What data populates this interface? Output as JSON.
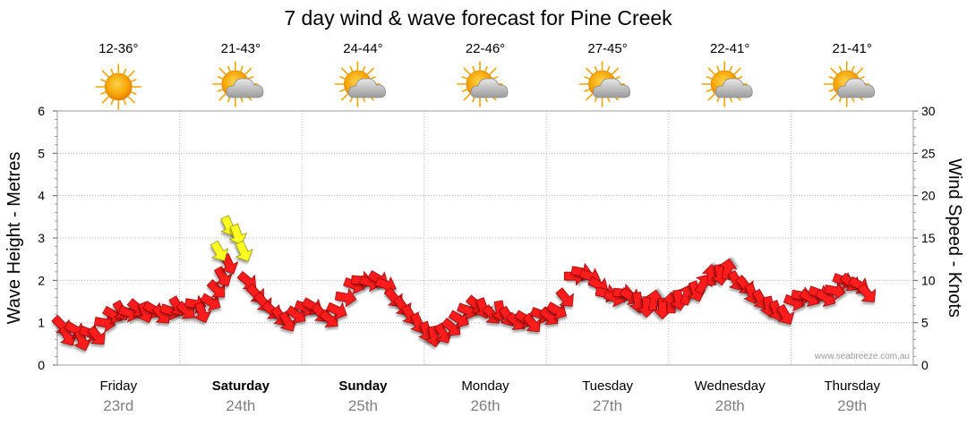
{
  "chart_data": {
    "type": "line",
    "title": "7 day wind & wave forecast for Pine Creek",
    "ylabel_left": "Wave Height - Metres",
    "ylabel_right": "Wind Speed - Knots",
    "ylim_left": [
      0,
      6
    ],
    "ylim_right": [
      0,
      30
    ],
    "yticks_left": [
      "0",
      "1",
      "2",
      "3",
      "4",
      "5",
      "6"
    ],
    "yticks_right": [
      "0",
      "5",
      "10",
      "15",
      "20",
      "25",
      "30"
    ],
    "grid": true,
    "credit": "www.seabreeze.com.au",
    "days": [
      {
        "name": "Friday",
        "date": "23rd",
        "bold": false,
        "temp": "12-36°",
        "weather": "sunny"
      },
      {
        "name": "Saturday",
        "date": "24th",
        "bold": true,
        "temp": "21-43°",
        "weather": "partly-cloudy"
      },
      {
        "name": "Sunday",
        "date": "25th",
        "bold": true,
        "temp": "24-44°",
        "weather": "partly-cloudy"
      },
      {
        "name": "Monday",
        "date": "26th",
        "bold": false,
        "temp": "22-46°",
        "weather": "partly-cloudy"
      },
      {
        "name": "Tuesday",
        "date": "27th",
        "bold": false,
        "temp": "27-45°",
        "weather": "partly-cloudy"
      },
      {
        "name": "Wednesday",
        "date": "28th",
        "bold": false,
        "temp": "22-41°",
        "weather": "partly-cloudy"
      },
      {
        "name": "Thursday",
        "date": "29th",
        "bold": false,
        "temp": "21-41°",
        "weather": "partly-cloudy"
      }
    ],
    "series": [
      {
        "name": "Wind Speed",
        "unit": "knots",
        "x_unit": "days from start",
        "points": [
          {
            "t": 0.03,
            "v": 4.8,
            "dir": 135
          },
          {
            "t": 0.08,
            "v": 3.5,
            "dir": 150
          },
          {
            "t": 0.14,
            "v": 4.2,
            "dir": 120
          },
          {
            "t": 0.2,
            "v": 3.0,
            "dir": 160
          },
          {
            "t": 0.26,
            "v": 3.8,
            "dir": 110
          },
          {
            "t": 0.32,
            "v": 3.5,
            "dir": 140
          },
          {
            "t": 0.38,
            "v": 5.0,
            "dir": 100
          },
          {
            "t": 0.45,
            "v": 6.0,
            "dir": 120
          },
          {
            "t": 0.52,
            "v": 6.5,
            "dir": 150
          },
          {
            "t": 0.58,
            "v": 6.2,
            "dir": 110
          },
          {
            "t": 0.65,
            "v": 6.8,
            "dir": 130
          },
          {
            "t": 0.72,
            "v": 6.3,
            "dir": 160
          },
          {
            "t": 0.78,
            "v": 6.6,
            "dir": 120
          },
          {
            "t": 0.85,
            "v": 6.0,
            "dir": 140
          },
          {
            "t": 0.92,
            "v": 6.4,
            "dir": 110
          },
          {
            "t": 0.98,
            "v": 7.0,
            "dir": 150
          },
          {
            "t": 1.05,
            "v": 6.5,
            "dir": 130
          },
          {
            "t": 1.12,
            "v": 7.2,
            "dir": 100
          },
          {
            "t": 1.18,
            "v": 6.3,
            "dir": 160
          },
          {
            "t": 1.25,
            "v": 7.5,
            "dir": 120
          },
          {
            "t": 1.3,
            "v": 9.0,
            "dir": 135
          },
          {
            "t": 1.35,
            "v": 10.5,
            "dir": 150
          },
          {
            "t": 1.4,
            "v": 12.0,
            "dir": 155
          },
          {
            "t": 1.55,
            "v": 10.0,
            "dir": 130
          },
          {
            "t": 1.62,
            "v": 8.5,
            "dir": 135
          },
          {
            "t": 1.68,
            "v": 7.5,
            "dir": 140
          },
          {
            "t": 1.75,
            "v": 6.5,
            "dir": 130
          },
          {
            "t": 1.82,
            "v": 5.8,
            "dir": 145
          },
          {
            "t": 1.88,
            "v": 5.2,
            "dir": 150
          },
          {
            "t": 1.95,
            "v": 6.0,
            "dir": 125
          },
          {
            "t": 2.02,
            "v": 6.8,
            "dir": 110
          },
          {
            "t": 2.08,
            "v": 7.0,
            "dir": 120
          },
          {
            "t": 2.15,
            "v": 6.2,
            "dir": 140
          },
          {
            "t": 2.22,
            "v": 5.5,
            "dir": 130
          },
          {
            "t": 2.28,
            "v": 6.5,
            "dir": 115
          },
          {
            "t": 2.35,
            "v": 8.0,
            "dir": 100
          },
          {
            "t": 2.42,
            "v": 9.5,
            "dir": 110
          },
          {
            "t": 2.48,
            "v": 10.0,
            "dir": 95
          },
          {
            "t": 2.55,
            "v": 9.8,
            "dir": 105
          },
          {
            "t": 2.62,
            "v": 10.2,
            "dir": 120
          },
          {
            "t": 2.68,
            "v": 9.5,
            "dir": 110
          },
          {
            "t": 2.75,
            "v": 8.0,
            "dir": 140
          },
          {
            "t": 2.82,
            "v": 7.0,
            "dir": 145
          },
          {
            "t": 2.88,
            "v": 6.0,
            "dir": 150
          },
          {
            "t": 2.95,
            "v": 5.0,
            "dir": 155
          },
          {
            "t": 3.02,
            "v": 4.0,
            "dir": 160
          },
          {
            "t": 3.08,
            "v": 3.5,
            "dir": 170
          },
          {
            "t": 3.15,
            "v": 3.8,
            "dir": 150
          },
          {
            "t": 3.22,
            "v": 4.5,
            "dir": 130
          },
          {
            "t": 3.28,
            "v": 5.5,
            "dir": 120
          },
          {
            "t": 3.35,
            "v": 6.5,
            "dir": 110
          },
          {
            "t": 3.42,
            "v": 7.2,
            "dir": 130
          },
          {
            "t": 3.48,
            "v": 6.8,
            "dir": 160
          },
          {
            "t": 3.55,
            "v": 6.0,
            "dir": 140
          },
          {
            "t": 3.62,
            "v": 6.5,
            "dir": 170
          },
          {
            "t": 3.68,
            "v": 5.8,
            "dir": 150
          },
          {
            "t": 3.75,
            "v": 5.2,
            "dir": 130
          },
          {
            "t": 3.82,
            "v": 5.5,
            "dir": 120
          },
          {
            "t": 3.88,
            "v": 5.0,
            "dir": 140
          },
          {
            "t": 3.95,
            "v": 6.0,
            "dir": 110
          },
          {
            "t": 4.02,
            "v": 5.8,
            "dir": 130
          },
          {
            "t": 4.08,
            "v": 6.5,
            "dir": 120
          },
          {
            "t": 4.15,
            "v": 8.0,
            "dir": 140
          },
          {
            "t": 4.22,
            "v": 10.5,
            "dir": 90
          },
          {
            "t": 4.28,
            "v": 11.0,
            "dir": 100
          },
          {
            "t": 4.35,
            "v": 10.5,
            "dir": 110
          },
          {
            "t": 4.42,
            "v": 9.5,
            "dir": 120
          },
          {
            "t": 4.48,
            "v": 8.5,
            "dir": 100
          },
          {
            "t": 4.55,
            "v": 8.0,
            "dir": 110
          },
          {
            "t": 4.62,
            "v": 8.5,
            "dir": 95
          },
          {
            "t": 4.68,
            "v": 8.2,
            "dir": 120
          },
          {
            "t": 4.75,
            "v": 7.5,
            "dir": 170
          },
          {
            "t": 4.82,
            "v": 7.0,
            "dir": 180
          },
          {
            "t": 4.88,
            "v": 7.5,
            "dir": 10
          },
          {
            "t": 4.95,
            "v": 6.8,
            "dir": 180
          },
          {
            "t": 5.02,
            "v": 7.2,
            "dir": 0
          },
          {
            "t": 5.08,
            "v": 7.8,
            "dir": 170
          },
          {
            "t": 5.15,
            "v": 8.2,
            "dir": 20
          },
          {
            "t": 5.22,
            "v": 8.8,
            "dir": 160
          },
          {
            "t": 5.28,
            "v": 9.5,
            "dir": 30
          },
          {
            "t": 5.35,
            "v": 10.5,
            "dir": 0
          },
          {
            "t": 5.42,
            "v": 10.8,
            "dir": 170
          },
          {
            "t": 5.48,
            "v": 11.2,
            "dir": 10
          },
          {
            "t": 5.55,
            "v": 10.0,
            "dir": 150
          },
          {
            "t": 5.62,
            "v": 9.5,
            "dir": 140
          },
          {
            "t": 5.68,
            "v": 8.5,
            "dir": 160
          },
          {
            "t": 5.75,
            "v": 7.8,
            "dir": 150
          },
          {
            "t": 5.82,
            "v": 7.0,
            "dir": 170
          },
          {
            "t": 5.88,
            "v": 6.5,
            "dir": 160
          },
          {
            "t": 5.95,
            "v": 6.0,
            "dir": 150
          },
          {
            "t": 6.02,
            "v": 7.5,
            "dir": 110
          },
          {
            "t": 6.08,
            "v": 8.2,
            "dir": 100
          },
          {
            "t": 6.15,
            "v": 8.0,
            "dir": 120
          },
          {
            "t": 6.22,
            "v": 8.5,
            "dir": 110
          },
          {
            "t": 6.28,
            "v": 8.0,
            "dir": 120
          },
          {
            "t": 6.35,
            "v": 8.8,
            "dir": 100
          },
          {
            "t": 6.42,
            "v": 10.0,
            "dir": 110
          },
          {
            "t": 6.48,
            "v": 9.8,
            "dir": 130
          },
          {
            "t": 6.55,
            "v": 9.5,
            "dir": 120
          },
          {
            "t": 6.62,
            "v": 8.5,
            "dir": 140
          }
        ]
      },
      {
        "name": "Wind Gusts",
        "unit": "knots",
        "x_unit": "days from start",
        "points": [
          {
            "t": 1.32,
            "v": 13.5,
            "dir": 150
          },
          {
            "t": 1.4,
            "v": 16.5,
            "dir": 155
          },
          {
            "t": 1.47,
            "v": 15.5,
            "dir": 160
          },
          {
            "t": 1.52,
            "v": 13.5,
            "dir": 155
          }
        ]
      }
    ]
  }
}
